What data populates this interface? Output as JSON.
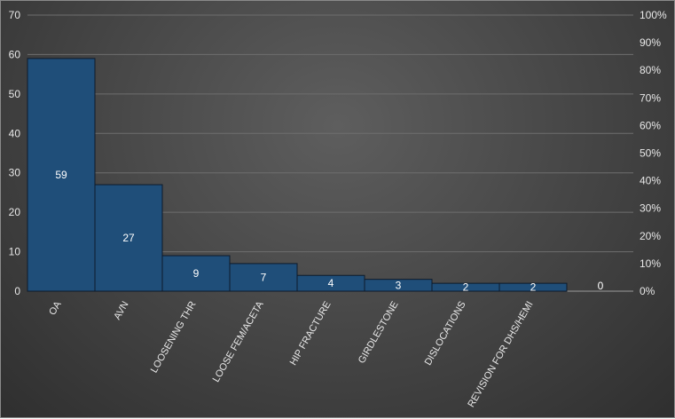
{
  "chart_data": {
    "type": "bar",
    "title": "",
    "xlabel": "",
    "ylabel": "",
    "categories": [
      "OA",
      "AVN",
      "LOOSENING THR",
      "LOOSE FEM/ACETA",
      "HIP FRACTURE",
      "GIRDLESTONE",
      "DISLOCATIONS",
      "REVISION FOR DHS/HEMI"
    ],
    "values": [
      59,
      27,
      9,
      7,
      4,
      3,
      2,
      2
    ],
    "extra_zero_label": "0",
    "ylim": [
      0,
      70
    ],
    "y_ticks": [
      "0",
      "10",
      "20",
      "30",
      "40",
      "50",
      "60",
      "70"
    ],
    "y2lim": [
      0,
      100
    ],
    "y2_ticks": [
      "0%",
      "10%",
      "20%",
      "30%",
      "40%",
      "50%",
      "60%",
      "70%",
      "80%",
      "90%",
      "100%"
    ],
    "grid": true,
    "legend": "none",
    "colors": {
      "bar_fill": "#1f4e79",
      "bar_stroke": "#0d1a2a",
      "grid": "#6e6e6e",
      "text": "#e8e8e8"
    }
  }
}
